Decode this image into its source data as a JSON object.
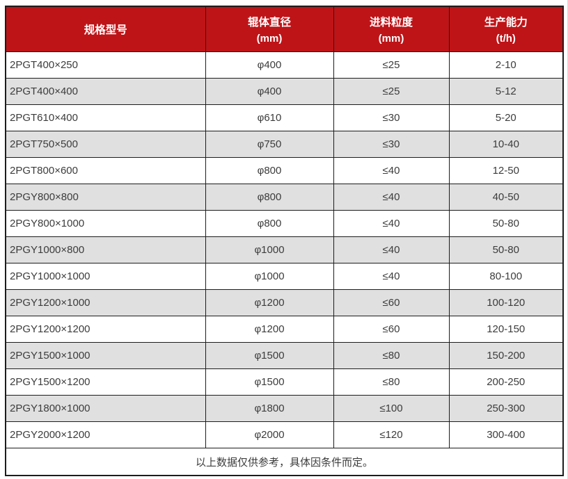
{
  "colors": {
    "header_bg": "#be1418",
    "header_text": "#ffffff",
    "row_bg": "#ffffff",
    "row_alt_bg": "#e0e0e0",
    "border": "#1c1c1c",
    "body_text": "#3c3c3c"
  },
  "table": {
    "columns": [
      {
        "title": "规格型号",
        "unit": ""
      },
      {
        "title": "辊体直径",
        "unit": "(mm)"
      },
      {
        "title": "进料粒度",
        "unit": "(mm)"
      },
      {
        "title": "生产能力",
        "unit": "(t/h)"
      }
    ],
    "rows": [
      {
        "model": "2PGT400×250",
        "roller_diameter": "φ400",
        "feed_size": "≤25",
        "capacity": "2-10"
      },
      {
        "model": "2PGT400×400",
        "roller_diameter": "φ400",
        "feed_size": "≤25",
        "capacity": "5-12"
      },
      {
        "model": "2PGT610×400",
        "roller_diameter": "φ610",
        "feed_size": "≤30",
        "capacity": "5-20"
      },
      {
        "model": "2PGT750×500",
        "roller_diameter": "φ750",
        "feed_size": "≤30",
        "capacity": "10-40"
      },
      {
        "model": "2PGT800×600",
        "roller_diameter": "φ800",
        "feed_size": "≤40",
        "capacity": "12-50"
      },
      {
        "model": "2PGY800×800",
        "roller_diameter": "φ800",
        "feed_size": "≤40",
        "capacity": "40-50"
      },
      {
        "model": "2PGY800×1000",
        "roller_diameter": "φ800",
        "feed_size": "≤40",
        "capacity": "50-80"
      },
      {
        "model": "2PGY1000×800",
        "roller_diameter": "φ1000",
        "feed_size": "≤40",
        "capacity": "50-80"
      },
      {
        "model": "2PGY1000×1000",
        "roller_diameter": "φ1000",
        "feed_size": "≤40",
        "capacity": "80-100"
      },
      {
        "model": "2PGY1200×1000",
        "roller_diameter": "φ1200",
        "feed_size": "≤60",
        "capacity": "100-120"
      },
      {
        "model": "2PGY1200×1200",
        "roller_diameter": "φ1200",
        "feed_size": "≤60",
        "capacity": "120-150"
      },
      {
        "model": "2PGY1500×1000",
        "roller_diameter": "φ1500",
        "feed_size": "≤80",
        "capacity": "150-200"
      },
      {
        "model": "2PGY1500×1200",
        "roller_diameter": "φ1500",
        "feed_size": "≤80",
        "capacity": "200-250"
      },
      {
        "model": "2PGY1800×1000",
        "roller_diameter": "φ1800",
        "feed_size": "≤100",
        "capacity": "250-300"
      },
      {
        "model": "2PGY2000×1200",
        "roller_diameter": "φ2000",
        "feed_size": "≤120",
        "capacity": "300-400"
      }
    ],
    "footer_note": "以上数据仅供参考，具体因条件而定。"
  }
}
